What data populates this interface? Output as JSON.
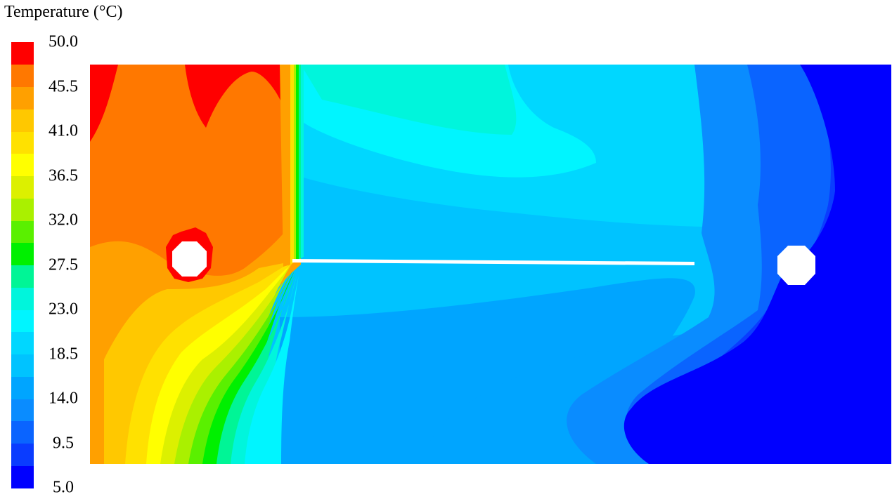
{
  "chart_data": {
    "type": "heatmap",
    "title": "Temperature (°C)",
    "xlabel": "",
    "ylabel": "",
    "vmin": 5.0,
    "vmax": 50.0,
    "levels": 20,
    "colorbar_tick_labels": [
      "50.0",
      "45.5",
      "41.0",
      "36.5",
      "32.0",
      "27.5",
      "23.0",
      "18.5",
      "14.0",
      "9.5",
      "5.0"
    ],
    "colorbar_colors": [
      "#0000ff",
      "#0a3cff",
      "#0a64ff",
      "#0a8cff",
      "#00a5ff",
      "#00c3ff",
      "#00d7ff",
      "#00f5ff",
      "#00f5dc",
      "#00f596",
      "#00f000",
      "#5af000",
      "#aaf000",
      "#dcf000",
      "#ffff00",
      "#ffe100",
      "#ffc800",
      "#ffa000",
      "#ff7800",
      "#ff0000"
    ],
    "grid": false,
    "legend": "left colorbar",
    "description_of_field": "left region hot (≈41–50 °C) with a heated circular pipe, sharp vertical front at partition, middle region ≈14–18.5 °C, right region cold (≈5–9.5 °C) with a cooled circular pipe; thin horizontal white plate across the middle"
  }
}
